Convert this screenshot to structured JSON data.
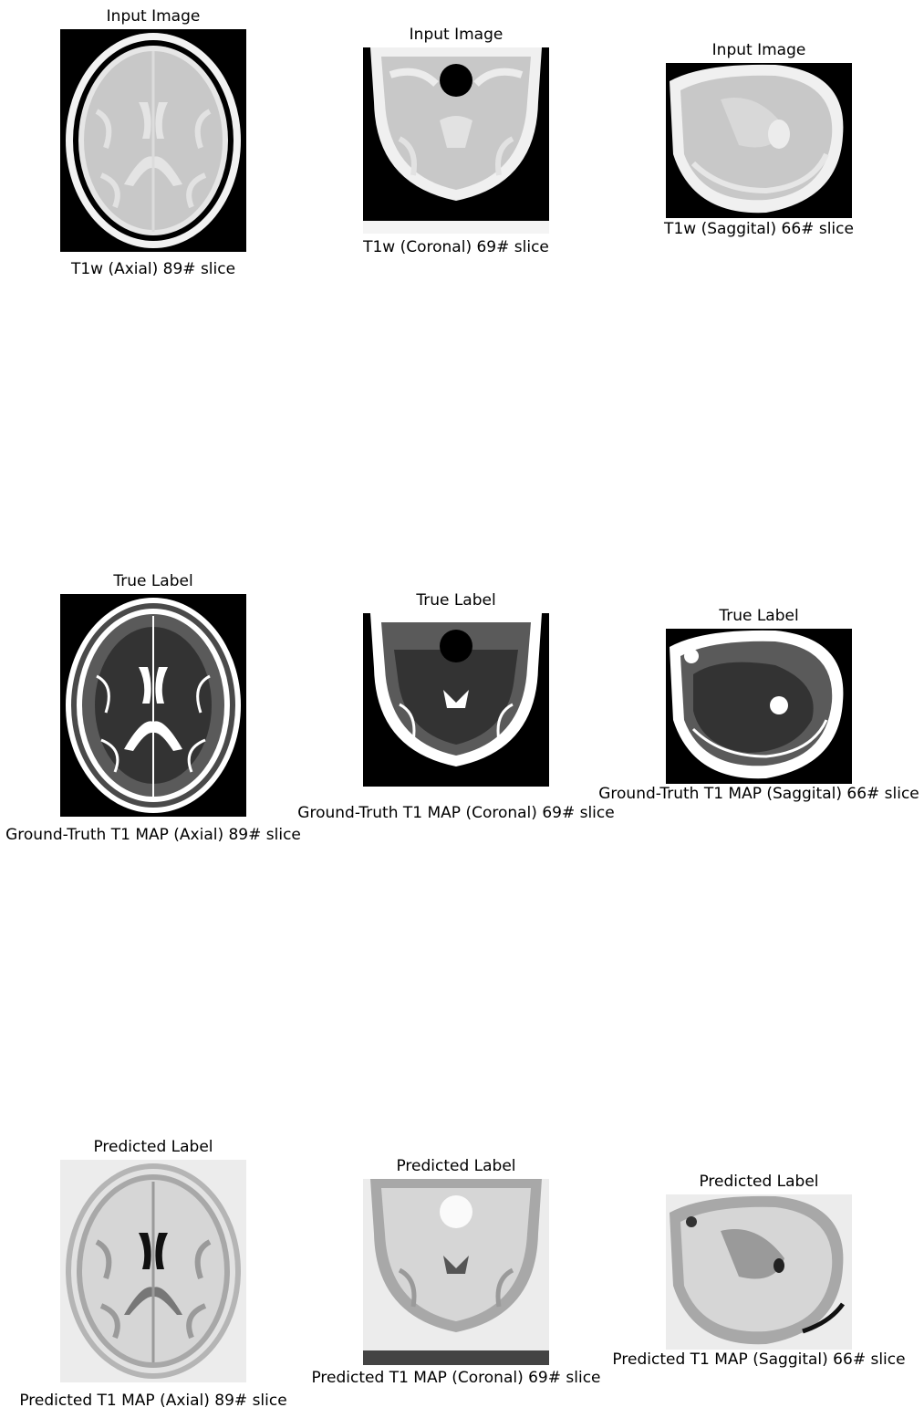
{
  "row_input": {
    "title": "Input Image",
    "captions": [
      "T1w (Axial) 89# slice",
      "T1w (Coronal) 69# slice",
      "T1w (Saggital) 66# slice"
    ]
  },
  "row_true": {
    "title": "True Label",
    "captions": [
      "Ground-Truth T1 MAP (Axial) 89# slice",
      "Ground-Truth T1 MAP (Coronal) 69# slice",
      "Ground-Truth T1 MAP (Saggital) 66# slice"
    ]
  },
  "row_pred": {
    "title": "Predicted Label",
    "captions": [
      "Predicted T1 MAP (Axial) 89# slice",
      "Predicted T1 MAP (Coronal) 69# slice",
      "Predicted T1 MAP (Saggital) 66# slice"
    ]
  },
  "colors": {
    "background": "#ffffff",
    "input_bg": "#000000",
    "input_tissue": "#c8c8c8",
    "input_skull": "#f0f0f0",
    "true_bg": "#000000",
    "true_tissue": "#333333",
    "true_gray": "#5a5a5a",
    "true_csf": "#ffffff",
    "pred_bg": "#ececec",
    "pred_tissue": "#d6d6d6",
    "pred_gray": "#9a9a9a",
    "pred_dark": "#111111"
  }
}
